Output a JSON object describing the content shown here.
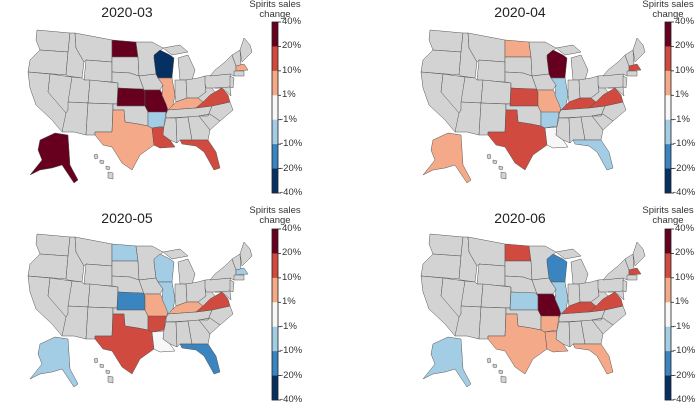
{
  "colors": {
    "no_data": "#d3d3d3",
    "bins": [
      {
        "label": "20% to 40%",
        "color": "#67001f"
      },
      {
        "label": "10% to 20%",
        "color": "#d04a3f"
      },
      {
        "label": "1% to 10%",
        "color": "#f4a988"
      },
      {
        "label": "-1% to 1%",
        "color": "#f7f7f7"
      },
      {
        "label": "-10% to -1%",
        "color": "#a3cde4"
      },
      {
        "label": "-20% to -10%",
        "color": "#3a84c0"
      },
      {
        "label": "-40% to -20%",
        "color": "#053061"
      }
    ]
  },
  "chart_data": [
    {
      "type": "choropleth",
      "title": "2020-03",
      "colorbar_label": [
        "Spirits sales",
        "change"
      ],
      "colorbar_ticks": [
        "40%",
        "20%",
        "10%",
        "1%",
        "-1%",
        "-10%",
        "-20%",
        "-40%"
      ],
      "values": {
        "ND": "20% to 40%",
        "WI": "-40% to -20%",
        "KS": "20% to 40%",
        "MO": "20% to 40%",
        "IL": "1% to 10%",
        "KY": "1% to 10%",
        "VA": "10% to 20%",
        "AR": "-10% to -1%",
        "TX": "1% to 10%",
        "LA": "10% to 20%",
        "FL": "10% to 20%",
        "MA": "1% to 10%",
        "AK": "20% to 40%"
      }
    },
    {
      "type": "choropleth",
      "title": "2020-04",
      "colorbar_label": [
        "Spirits sales",
        "change"
      ],
      "colorbar_ticks": [
        "40%",
        "20%",
        "10%",
        "1%",
        "-1%",
        "-10%",
        "-20%",
        "-40%"
      ],
      "values": {
        "ND": "1% to 10%",
        "WI": "20% to 40%",
        "MA": "10% to 20%",
        "IL": "-10% to -1%",
        "KS": "10% to 20%",
        "MO": "1% to 10%",
        "KY": "10% to 20%",
        "VA": "10% to 20%",
        "AR": "-10% to -1%",
        "TX": "10% to 20%",
        "LA": "-1% to 1%",
        "FL": "-10% to -1%",
        "AK": "1% to 10%"
      }
    },
    {
      "type": "choropleth",
      "title": "2020-05",
      "colorbar_label": [
        "Spirits sales",
        "change"
      ],
      "colorbar_ticks": [
        "40%",
        "20%",
        "10%",
        "1%",
        "-1%",
        "-10%",
        "-20%",
        "-40%"
      ],
      "values": {
        "ND": "-10% to -1%",
        "WI": "-10% to -1%",
        "IL": "-10% to -1%",
        "MA": "-10% to -1%",
        "KS": "-20% to -10%",
        "MO": "1% to 10%",
        "KY": "1% to 10%",
        "VA": "10% to 20%",
        "AR": "10% to 20%",
        "TX": "10% to 20%",
        "LA": "-1% to 1%",
        "FL": "-20% to -10%",
        "AK": "-10% to -1%"
      }
    },
    {
      "type": "choropleth",
      "title": "2020-06",
      "colorbar_label": [
        "Spirits sales",
        "change"
      ],
      "colorbar_ticks": [
        "40%",
        "20%",
        "10%",
        "1%",
        "-1%",
        "-10%",
        "-20%",
        "-40%"
      ],
      "values": {
        "ND": "10% to 20%",
        "WI": "-20% to -10%",
        "MA": "10% to 20%",
        "IL": "-10% to -1%",
        "KS": "-10% to -1%",
        "MO": "20% to 40%",
        "KY": "10% to 20%",
        "VA": "10% to 20%",
        "AR": "1% to 10%",
        "TX": "1% to 10%",
        "LA": "1% to 10%",
        "FL": "1% to 10%",
        "AK": "-10% to -1%"
      }
    }
  ]
}
